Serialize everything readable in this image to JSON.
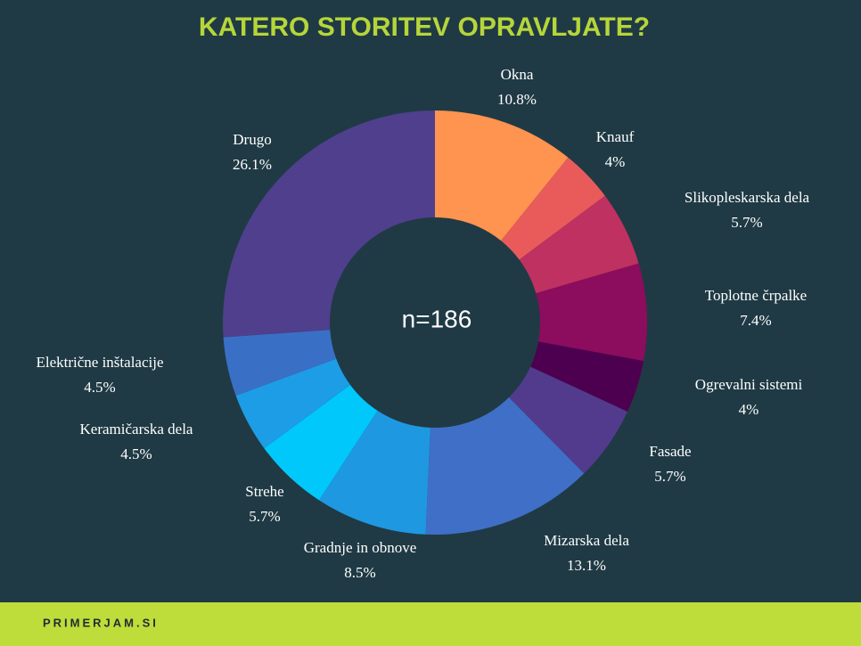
{
  "chart_data": {
    "type": "donut",
    "title": "KATERO STORITEV OPRAVLJATE?",
    "center_label": "n=186",
    "categories": [
      "Okna",
      "Knauf",
      "Slikopleskarska dela",
      "Toplotne črpalke",
      "Ogrevalni sistemi",
      "Fasade",
      "Mizarska dela",
      "Gradnje in obnove",
      "Strehe",
      "Keramičarska dela",
      "Električne inštalacije",
      "Drugo"
    ],
    "values": [
      10.8,
      4,
      5.7,
      7.4,
      4,
      5.7,
      13.1,
      8.5,
      5.7,
      4.5,
      4.5,
      26.1
    ],
    "value_labels": [
      "10.8%",
      "4%",
      "5.7%",
      "7.4%",
      "4%",
      "5.7%",
      "13.1%",
      "8.5%",
      "5.7%",
      "4.5%",
      "4.5%",
      "26.1%"
    ],
    "colors": [
      "#ff9350",
      "#e95b5b",
      "#bf3160",
      "#8c0c5e",
      "#4d0050",
      "#523b8d",
      "#3f6fc6",
      "#1f98e2",
      "#00c8fb",
      "#1d9de6",
      "#3a6fc6",
      "#4f3f8c"
    ]
  },
  "footer": "PRIMERJAM.SI"
}
